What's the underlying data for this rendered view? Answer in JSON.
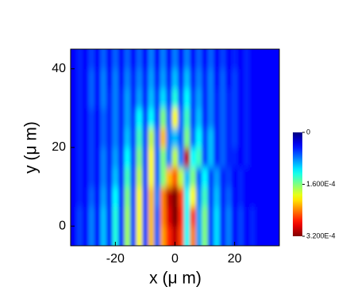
{
  "chart_data": {
    "type": "heatmap",
    "xlabel": "x (μ m)",
    "ylabel": "y (μ m)",
    "xlim": [
      -35,
      35
    ],
    "ylim": [
      -5,
      45
    ],
    "xticks": [
      -20,
      0,
      20
    ],
    "yticks": [
      0,
      20,
      40
    ],
    "colormap": "jet",
    "colorbar": {
      "range": [
        0,
        0.00032
      ],
      "ticks": [
        0,
        {
          "value": 0.00016,
          "label": "1.600E-4"
        },
        {
          "value": 0.00032,
          "label": "3.200E-4"
        }
      ]
    },
    "x": [
      -34,
      -32,
      -30,
      -28,
      -26,
      -24,
      -22,
      -20,
      -18,
      -16,
      -14,
      -12,
      -10,
      -8,
      -6,
      -4,
      -2,
      0,
      2,
      4,
      6,
      8,
      10,
      12,
      14,
      16,
      18,
      20,
      22,
      24,
      26,
      28,
      30,
      32,
      34
    ],
    "y": [
      -2.5,
      2.5,
      7.5,
      12.5,
      17.5,
      22.5,
      27.5,
      32.5,
      37.5,
      42.5
    ],
    "z": [
      [
        4e-05,
        6e-05,
        4e-05,
        8e-05,
        4e-05,
        0.0001,
        5e-05,
        0.00013,
        5e-05,
        0.00017,
        6e-05,
        0.0002,
        6e-05,
        0.00022,
        7e-05,
        0.00023,
        0.00027,
        0.0003,
        0.00026,
        0.00012,
        0.00024,
        9e-05,
        0.00016,
        6e-05,
        0.00011,
        5e-05,
        8e-05,
        4e-05,
        6e-05,
        4e-05,
        5e-05,
        4e-05,
        4e-05,
        4e-05,
        4e-05
      ],
      [
        4e-05,
        6e-05,
        4e-05,
        8e-05,
        4e-05,
        0.0001,
        5e-05,
        0.00013,
        5e-05,
        0.00017,
        6e-05,
        0.0002,
        6e-05,
        0.00022,
        7e-05,
        0.00024,
        0.00029,
        0.00032,
        0.00027,
        0.00012,
        0.00026,
        9e-05,
        0.00016,
        6e-05,
        0.00011,
        5e-05,
        8e-05,
        4e-05,
        6e-05,
        4e-05,
        5e-05,
        4e-05,
        4e-05,
        4e-05,
        4e-05
      ],
      [
        4e-05,
        5e-05,
        4e-05,
        7e-05,
        4e-05,
        9e-05,
        5e-05,
        0.00012,
        5e-05,
        0.00016,
        6e-05,
        0.0002,
        6e-05,
        0.00022,
        8e-05,
        0.00024,
        0.0003,
        0.00032,
        0.00026,
        0.00012,
        0.0002,
        8e-05,
        0.00014,
        6e-05,
        0.0001,
        5e-05,
        7e-05,
        4e-05,
        5e-05,
        4e-05,
        4e-05,
        4e-05,
        4e-05,
        4e-05,
        4e-05
      ],
      [
        4e-05,
        5e-05,
        4e-05,
        6e-05,
        4e-05,
        8e-05,
        5e-05,
        0.0001,
        5e-05,
        0.00014,
        6e-05,
        0.00018,
        6e-05,
        0.0002,
        7e-05,
        0.00016,
        0.00022,
        0.00025,
        0.00018,
        0.0001,
        0.00016,
        7e-05,
        0.00012,
        6e-05,
        9e-05,
        5e-05,
        6e-05,
        4e-05,
        5e-05,
        4e-05,
        4e-05,
        4e-05,
        4e-05,
        4e-05,
        4e-05
      ],
      [
        4e-05,
        5e-05,
        4e-05,
        6e-05,
        4e-05,
        8e-05,
        5e-05,
        9e-05,
        5e-05,
        0.00012,
        6e-05,
        0.00016,
        6e-05,
        0.0002,
        7e-05,
        0.00016,
        8e-05,
        0.00018,
        8e-05,
        0.0003,
        0.00012,
        0.00014,
        6e-05,
        0.0001,
        5e-05,
        7e-05,
        5e-05,
        5e-05,
        4e-05,
        5e-05,
        4e-05,
        4e-05,
        4e-05,
        4e-05,
        4e-05
      ],
      [
        4e-05,
        5e-05,
        4e-05,
        6e-05,
        4e-05,
        7e-05,
        5e-05,
        8e-05,
        5e-05,
        0.0001,
        6e-05,
        0.00014,
        6e-05,
        0.00018,
        7e-05,
        0.00022,
        8e-05,
        0.0001,
        7e-05,
        0.00016,
        7e-05,
        0.00012,
        6e-05,
        0.0001,
        5e-05,
        7e-05,
        5e-05,
        6e-05,
        4e-05,
        5e-05,
        4e-05,
        4e-05,
        4e-05,
        4e-05,
        4e-05
      ],
      [
        4e-05,
        5e-05,
        4e-05,
        6e-05,
        4e-05,
        7e-05,
        5e-05,
        8e-05,
        5e-05,
        9e-05,
        6e-05,
        0.00012,
        6e-05,
        0.00012,
        6e-05,
        0.00016,
        7e-05,
        0.0002,
        7e-05,
        0.00014,
        6e-05,
        0.0001,
        5e-05,
        8e-05,
        5e-05,
        7e-05,
        5e-05,
        6e-05,
        4e-05,
        5e-05,
        4e-05,
        4e-05,
        4e-05,
        4e-05,
        4e-05
      ],
      [
        4e-05,
        5e-05,
        4e-05,
        7e-05,
        4e-05,
        8e-05,
        5e-05,
        8e-05,
        5e-05,
        9e-05,
        5e-05,
        9e-05,
        5e-05,
        0.0001,
        6e-05,
        0.00011,
        6e-05,
        0.00013,
        6e-05,
        0.00012,
        6e-05,
        9e-05,
        5e-05,
        8e-05,
        5e-05,
        7e-05,
        5e-05,
        6e-05,
        4e-05,
        5e-05,
        4e-05,
        4e-05,
        4e-05,
        4e-05,
        4e-05
      ],
      [
        4e-05,
        5e-05,
        4e-05,
        7e-05,
        4e-05,
        8e-05,
        4e-05,
        8e-05,
        4e-05,
        8e-05,
        5e-05,
        8e-05,
        5e-05,
        9e-05,
        5e-05,
        9e-05,
        5e-05,
        0.0001,
        5e-05,
        0.0001,
        5e-05,
        8e-05,
        5e-05,
        8e-05,
        4e-05,
        7e-05,
        4e-05,
        6e-05,
        4e-05,
        5e-05,
        4e-05,
        4e-05,
        4e-05,
        4e-05,
        4e-05
      ],
      [
        4e-05,
        5e-05,
        4e-05,
        6e-05,
        4e-05,
        7e-05,
        4e-05,
        7e-05,
        4e-05,
        7e-05,
        4e-05,
        7e-05,
        4e-05,
        8e-05,
        4e-05,
        8e-05,
        4e-05,
        8e-05,
        4e-05,
        8e-05,
        4e-05,
        7e-05,
        4e-05,
        7e-05,
        4e-05,
        6e-05,
        4e-05,
        5e-05,
        4e-05,
        5e-05,
        4e-05,
        4e-05,
        4e-05,
        4e-05,
        4e-05
      ]
    ]
  }
}
